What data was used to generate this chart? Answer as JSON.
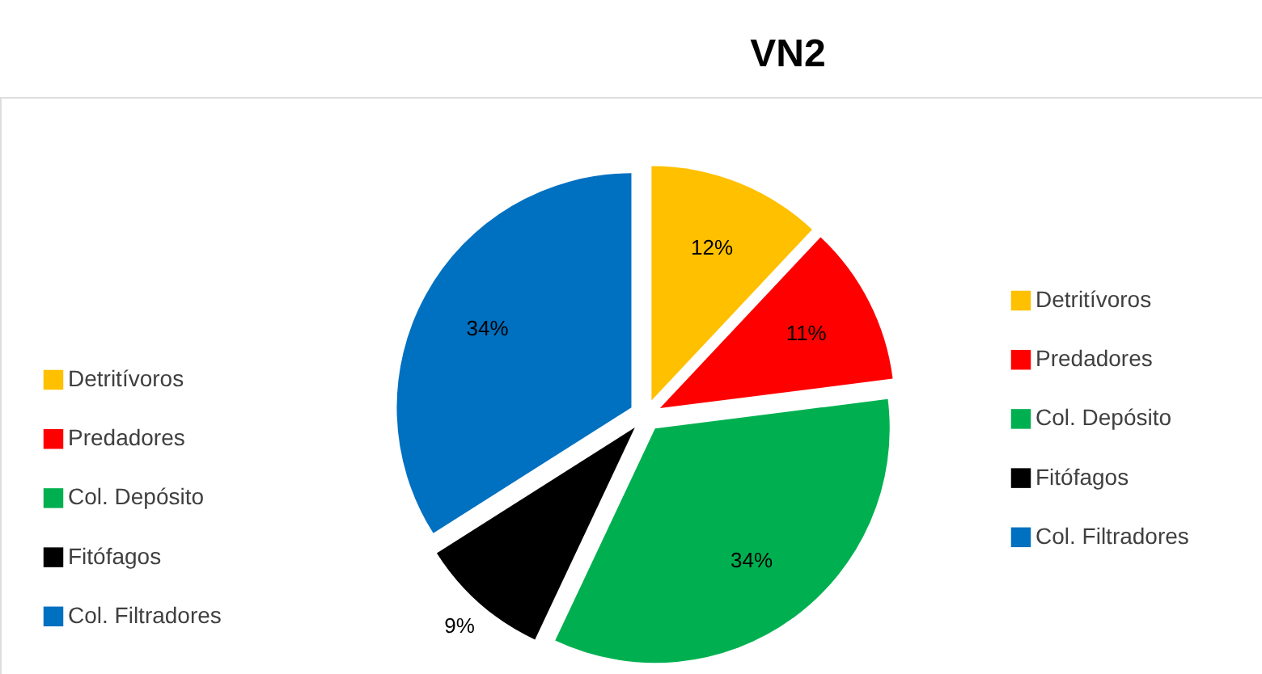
{
  "chart_data": {
    "type": "pie",
    "title": "VN2",
    "categories": [
      "Detritívoros",
      "Predadores",
      "Col. Depósito",
      "Fitófagos",
      "Col. Filtradores"
    ],
    "values": [
      12,
      11,
      34,
      9,
      34
    ],
    "colors": [
      "#ffc000",
      "#ff0000",
      "#00b050",
      "#000000",
      "#0070c0"
    ],
    "value_labels": [
      "12%",
      "11%",
      "34%",
      "9%",
      "34%"
    ],
    "legend": [
      "left",
      "right"
    ]
  }
}
